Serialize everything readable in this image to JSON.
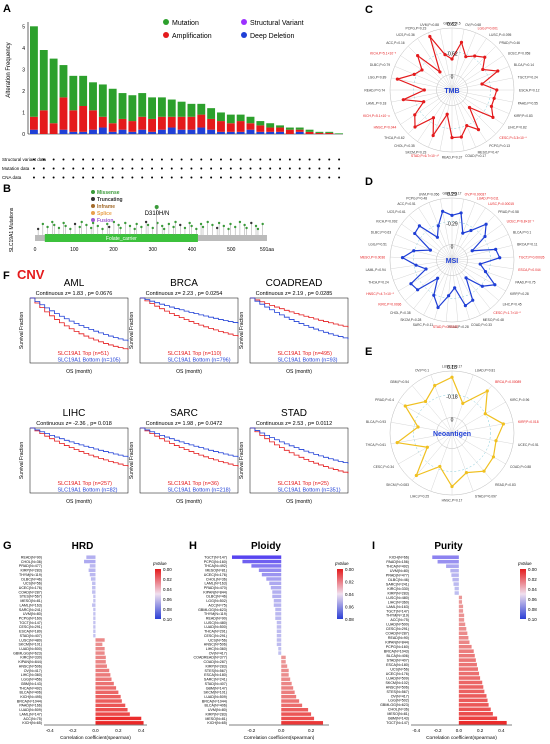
{
  "panel_labels": {
    "a": "A",
    "b": "B",
    "c": "C",
    "d": "D",
    "e": "E",
    "f": "F",
    "g": "G",
    "h": "H",
    "i": "I"
  },
  "panel_a": {
    "ylabel": "Alteration Frequency",
    "legend": [
      {
        "label": "Mutation",
        "color": "#2ca02c"
      },
      {
        "label": "Structural Variant",
        "color": "#9b30ff"
      },
      {
        "label": "Amplification",
        "color": "#e41a1c"
      },
      {
        "label": "Deep Deletion",
        "color": "#1f3fd6"
      }
    ],
    "yticks": [
      "0",
      "1",
      "2",
      "3",
      "4",
      "5"
    ],
    "row_labels": [
      "Structural variant data",
      "Mutation data",
      "CNA data"
    ]
  },
  "panel_b": {
    "ylabel": "SLC19A1 Mutations",
    "annotation": "D310H/N",
    "domain_label": "Folate_carrier",
    "xticks": [
      "0",
      "100",
      "200",
      "300",
      "400",
      "500",
      "591aa"
    ],
    "legend": [
      {
        "label": "Missense",
        "color": "#3a9a3a"
      },
      {
        "label": "Truncating",
        "color": "#333333"
      },
      {
        "label": "Inframe",
        "color": "#a36b2b"
      },
      {
        "label": "Splice",
        "color": "#e8a04c"
      },
      {
        "label": "Fusion",
        "color": "#9b59d0"
      }
    ]
  },
  "panel_c": {
    "center": "TMB",
    "r_outer": "0.62",
    "r_inner": "-0.62",
    "r_mid": "0",
    "labels": [
      "GBM,P=0.5",
      "OV,P=0.68",
      "LGG,P=0.001",
      "LUSC,P=0.095",
      "PRAD,P=0.46",
      "UCEC,P=0.058",
      "BLCA,P=0.14",
      "TGCT,P=0.24",
      "ESCA,P=0.12",
      "PAAD,P=0.55",
      "KIRP,P=0.83",
      "LIHC,P=0.82",
      "CESC,P=3.3×10⁻⁸",
      "PCPG,P=0.13",
      "MESO,P=0.47",
      "COAD,P=0.17",
      "READ,P=0.37",
      "STAD,P=6.7×10⁻¹⁰",
      "SKCM,P=0.23",
      "CHOL,P=0.35",
      "THCA,P=0.62",
      "HNSC,P=0.044",
      "KICH,P=5.1×10⁻¹¹",
      "LAML,P=0.18",
      "READ,P=0.74",
      "LGG,P=0.89",
      "DLBC,P=0.79",
      "KICH,P=5.1×10⁻⁵",
      "ACC,P=0.16",
      "UCS,P=0.36",
      "PCPG,P=0.23",
      "UVM,P=0.88"
    ]
  },
  "panel_d": {
    "center": "MSI",
    "r_outer": "0.29",
    "r_inner": "-0.29",
    "r_mid": "0",
    "labels": [
      "GBM,P=0.17",
      "OV,P=0.00037",
      "LUAD,P=0.011",
      "LUSC,P=0.00015",
      "PRAD,P=0.58",
      "UCEC,P=6.8×10⁻⁶",
      "BLCA,P=0.1",
      "BRCA,P=0.11",
      "TGCT,P=0.00026",
      "ESCA,P=0.044",
      "PAAD,P=0.75",
      "KIRP,P=0.28",
      "LIHC,P=0.45",
      "CESC,P=1.7×10⁻⁵",
      "MESO,P=0.48",
      "COAD,P=0.33",
      "READ,P=0.28",
      "STAD,P=0.00047",
      "SARC,P=0.11",
      "SKCM,P=0.28",
      "CHOL,P=0.38",
      "KIRC,P=0.0036",
      "HNSC,P=4.7×10⁻⁵",
      "THCA,P=0.24",
      "LAML,P=0.94",
      "MESO,P=0.0036",
      "LGG,P=0.51",
      "DLBC,P=0.63",
      "KICH,P=0.092",
      "UCS,P=0.61",
      "ACC,P=0.51",
      "PCPG,P=0.48",
      "UVM,P=0.056"
    ]
  },
  "panel_e": {
    "center": "Neoantigen",
    "r_outer": "0.18",
    "r_inner": "-0.18",
    "r_mid": "0",
    "labels": [
      "LUSC,P=0.17",
      "LUAD,P=0.81",
      "BRCA,P=0.00089",
      "KIRC,P=0.96",
      "KIRP,P=0.018",
      "UCEC,P=0.51",
      "COAD,P=0.88",
      "READ,P=0.83",
      "STAD,P=0.097",
      "HNSC,P=0.17",
      "LIHC,P=0.25",
      "SKCM,P=0.083",
      "CESC,P=0.34",
      "THCA,P=0.61",
      "BLCA,P=0.93",
      "PRAD,P=0.4",
      "GBM,P=0.54",
      "OV,P=0.1"
    ]
  },
  "panel_f": {
    "title": "CNV",
    "ylabel": "Survival Fraction",
    "xlabel": "OS (month)",
    "plots": [
      {
        "name": "AML",
        "stat": "Continuous z= 1.83 , p= 0.0676",
        "top": "SLC19A1 Top (n=51)",
        "bottom": "SLC19A1 Bottom (n=105)"
      },
      {
        "name": "BRCA",
        "stat": "Continuous z= 2.23 , p= 0.0254",
        "top": "SLC19A1 Top (n=110)",
        "bottom": "SLC19A1 Bottom (n=796)"
      },
      {
        "name": "COADREAD",
        "stat": "Continuous z= 2.19 , p= 0.0285",
        "top": "SLC19A1 Top (n=495)",
        "bottom": "SLC19A1 Bottom (n=93)"
      },
      {
        "name": "LIHC",
        "stat": "Continuous z= -2.36 , p= 0.018",
        "top": "SLC19A1 Top (n=257)",
        "bottom": "SLC19A1 Bottom (n=82)"
      },
      {
        "name": "SARC",
        "stat": "Continuous z= 1.98 , p= 0.0472",
        "top": "SLC19A1 Top (n=36)",
        "bottom": "SLC19A1 Bottom (n=218)"
      },
      {
        "name": "STAD",
        "stat": "Continuous z= 2.53 , p= 0.0112",
        "top": "SLC19A1 Top (n=25)",
        "bottom": "SLC19A1 Bottom (n=351)"
      }
    ]
  },
  "panel_g": {
    "title": "HRD",
    "xlabel": "Correlation coefficient(spearman)",
    "legend": "pValue",
    "xticks": [
      "-0.4",
      "-0.2",
      "0.0",
      "0.2",
      "0.4"
    ],
    "cbticks": [
      "0.00",
      "0.02",
      "0.04",
      "0.06",
      "0.08",
      "0.10"
    ]
  },
  "panel_h": {
    "title": "Ploidy",
    "xlabel": "Correlation coefficient(spearman)",
    "legend": "pValue",
    "xticks": [
      "-0.2",
      "0.0",
      "0.2"
    ],
    "cbticks": [
      "0.00",
      "0.02",
      "0.04",
      "0.06",
      "0.08"
    ]
  },
  "panel_i": {
    "title": "Purity",
    "xlabel": "Correlation coefficient(spearman)",
    "legend": "pValue",
    "xticks": [
      "-0.4",
      "-0.2",
      "0.0",
      "0.2",
      "0.4"
    ],
    "cbticks": [
      "0.00",
      "0.02",
      "0.04",
      "0.06",
      "0.08",
      "0.10"
    ]
  },
  "chart_data": [
    {
      "type": "bar",
      "title": "HRD",
      "categories": [
        "READ(N=90)",
        "CHOL(N=36)",
        "PRAD(N=477)",
        "KIRP(N=283)",
        "THYM(N=119)",
        "DLBC(N=46)",
        "UCS(N=56)",
        "UCEC(N=176)",
        "COAD(N=287)",
        "STES(N=567)",
        "MESO(N=81)",
        "LAML(N=163)",
        "SARC(N=241)",
        "UVM(N=80)",
        "PCPG(N=160)",
        "TGCT(N=147)",
        "CESC(N=291)",
        "ESCA(N=180)",
        "STAD(N=407)",
        "LUSC(N=480)",
        "SKCM(N=101)",
        "LUAD(N=500)",
        "GBMLGG(N=623)",
        "KIRC(N=330)",
        "KIPAN(N=844)",
        "HNSC(N=506)",
        "OV(N=417)",
        "LIHC(N=360)",
        "LGG(N=456)",
        "GBM(N=143)",
        "THCA(N=492)",
        "BLCA(N=406)",
        "KICH(N=495)",
        "BRCA(N=1044)",
        "PAAD(N=166)",
        "LUAD(N=509)",
        "LAML(N=147)",
        "ACC(N=75)",
        "KICH(N=65)"
      ],
      "values": [
        -0.08,
        -0.1,
        -0.05,
        -0.06,
        -0.05,
        -0.04,
        -0.03,
        -0.03,
        -0.03,
        -0.02,
        -0.02,
        -0.03,
        -0.02,
        -0.02,
        -0.02,
        -0.02,
        -0.02,
        -0.02,
        -0.02,
        0.08,
        0.06,
        0.08,
        0.08,
        0.09,
        0.09,
        0.1,
        0.12,
        0.13,
        0.14,
        0.16,
        0.18,
        0.2,
        0.22,
        0.23,
        0.26,
        0.28,
        0.3,
        0.4,
        0.42
      ]
    },
    {
      "type": "bar",
      "title": "Ploidy",
      "categories": [
        "TGCT(N=147)",
        "PCPG(N=160)",
        "THCA(N=492)",
        "MESO(N=81)",
        "UCEC(N=176)",
        "CHOL(N=36)",
        "LAML(N=163)",
        "PRAD(N=470)",
        "KIPAN(N=844)",
        "DLBC(N=46)",
        "LGG(N=502)",
        "ACC(N=75)",
        "GBMLGG(N=623)",
        "THYM(N=119)",
        "READ(N=90)",
        "LUSC(N=480)",
        "LUAD(N=500)",
        "THCA(N=291)",
        "CESC(N=291)",
        "UCS(N=56)",
        "HNSC(N=506)",
        "LIHC(N=360)",
        "OV(N=417)",
        "COADREAD(N=377)",
        "COAD(N=287)",
        "KIRP(N=283)",
        "STES(N=567)",
        "ESCA(N=180)",
        "SARC(N=241)",
        "STAD(N=407)",
        "GBM(N=147)",
        "SKCM(N=101)",
        "LUAD(N=509)",
        "BRCA(N=1044)",
        "BLCA(N=406)",
        "UVM(N=80)",
        "KIRP(N=283)",
        "MESO(N=81)",
        "KICH(N=65)"
      ],
      "values": [
        -0.33,
        -0.26,
        -0.2,
        -0.15,
        -0.13,
        -0.1,
        -0.08,
        -0.07,
        -0.06,
        -0.06,
        -0.05,
        -0.05,
        -0.04,
        -0.04,
        -0.04,
        -0.03,
        -0.03,
        -0.03,
        -0.03,
        -0.03,
        -0.03,
        -0.02,
        -0.02,
        0.03,
        0.03,
        0.04,
        0.05,
        0.05,
        0.06,
        0.07,
        0.08,
        0.09,
        0.1,
        0.12,
        0.14,
        0.18,
        0.2,
        0.22,
        0.28
      ]
    },
    {
      "type": "bar",
      "title": "Purity",
      "categories": [
        "KICH(N=66)",
        "PAAD(N=156)",
        "THCA(N=492)",
        "UVM(N=80)",
        "PRAD(N=477)",
        "DLBC(N=46)",
        "SARC(N=241)",
        "KIRC(N=330)",
        "KIRP(N=283)",
        "LUSC(N=480)",
        "LIHC(N=360)",
        "LAML(N=163)",
        "TGCT(N=147)",
        "THYM(N=119)",
        "ACC(N=75)",
        "LUAD(N=500)",
        "CESC(N=291)",
        "COAD(N=287)",
        "READ(N=90)",
        "KIPAN(N=844)",
        "PCPG(N=160)",
        "BRCA(N=1043)",
        "BLCA(N=406)",
        "STAD(N=407)",
        "ESCA(N=180)",
        "UCS(N=56)",
        "UCEC(N=176)",
        "LUAD(N=509)",
        "SKCM(N=102)",
        "HNSC(N=506)",
        "STES(N=567)",
        "OV(N=417)",
        "LGG(N=502)",
        "GBMLGG(N=623)",
        "CHOL(N=36)",
        "MESO(N=81)",
        "GBM(N=143)",
        "TGCT(N=147)"
      ],
      "values": [
        -0.25,
        -0.2,
        -0.12,
        -0.08,
        -0.07,
        -0.06,
        -0.05,
        -0.04,
        -0.04,
        0.03,
        0.03,
        0.04,
        0.04,
        0.05,
        0.05,
        0.06,
        0.07,
        0.08,
        0.09,
        0.1,
        0.12,
        0.14,
        0.15,
        0.16,
        0.17,
        0.18,
        0.19,
        0.2,
        0.22,
        0.23,
        0.24,
        0.26,
        0.27,
        0.28,
        0.3,
        0.32,
        0.36,
        0.45
      ]
    }
  ]
}
